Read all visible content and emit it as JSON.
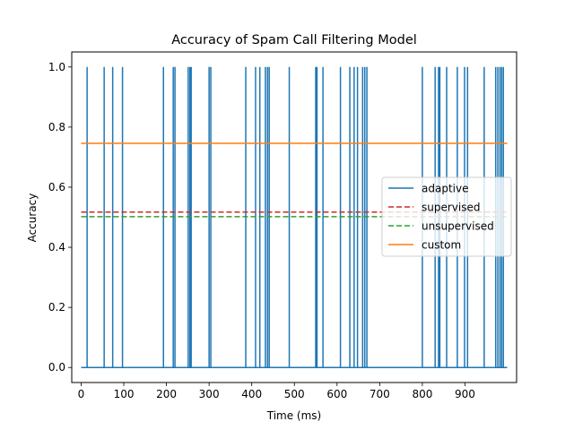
{
  "chart_data": {
    "type": "line",
    "title": "Accuracy of Spam Call Filtering Model",
    "xlabel": "Time (ms)",
    "ylabel": "Accuracy",
    "xlim": [
      -22,
      1021
    ],
    "ylim": [
      -0.05,
      1.05
    ],
    "xticks": [
      0,
      100,
      200,
      300,
      400,
      500,
      600,
      700,
      800,
      900
    ],
    "xtick_labels": [
      "0",
      "100",
      "200",
      "300",
      "400",
      "500",
      "600",
      "700",
      "800",
      "900"
    ],
    "yticks": [
      0.0,
      0.2,
      0.4,
      0.6,
      0.8,
      1.0
    ],
    "ytick_labels": [
      "0.0",
      "0.2",
      "0.4",
      "0.6",
      "0.8",
      "1.0"
    ],
    "grid": false,
    "legend_position": "center-right",
    "series": [
      {
        "name": "adaptive",
        "style": "solid",
        "color": "#1f77b4",
        "x_range": [
          0,
          999
        ],
        "baseline": 0,
        "spike_value": 1,
        "spikes_x": [
          14,
          54,
          74,
          97,
          193,
          216,
          220,
          251,
          255,
          258,
          300,
          304,
          386,
          409,
          419,
          432,
          437,
          441,
          488,
          550,
          553,
          567,
          608,
          630,
          640,
          648,
          660,
          665,
          670,
          800,
          830,
          838,
          841,
          857,
          882,
          899,
          906,
          945,
          972,
          977,
          982,
          986,
          990
        ]
      },
      {
        "name": "supervised",
        "style": "dashed",
        "color": "#d62728",
        "x": [
          0,
          999
        ],
        "y": [
          0.517,
          0.517
        ]
      },
      {
        "name": "unsupervised",
        "style": "dashed",
        "color": "#2ca02c",
        "x": [
          0,
          999
        ],
        "y": [
          0.502,
          0.502
        ]
      },
      {
        "name": "custom",
        "style": "solid",
        "color": "#ff7f0e",
        "x": [
          0,
          999
        ],
        "y": [
          0.746,
          0.746
        ]
      }
    ]
  }
}
